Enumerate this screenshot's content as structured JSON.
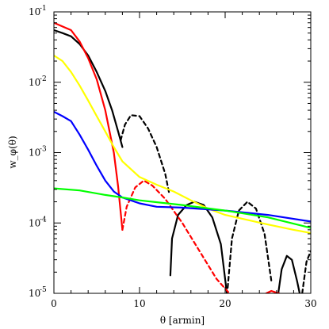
{
  "chart_data": {
    "type": "line",
    "title": "",
    "xlabel": "θ [armin]",
    "ylabel": "w_φ(θ)",
    "xlim": [
      0,
      30
    ],
    "ylim": [
      1e-05,
      0.1
    ],
    "yscale": "log",
    "grid": false,
    "legend": "none",
    "x_ticks": [
      0,
      10,
      20,
      30
    ],
    "x_tick_labels": [
      "0",
      "10",
      "20",
      "30"
    ],
    "y_ticks": [
      1e-05,
      0.0001,
      0.001,
      0.01,
      0.1
    ],
    "y_tick_labels": [
      "10",
      "10",
      "10",
      "10",
      "10"
    ],
    "y_tick_exponents": [
      "-5",
      "-4",
      "-3",
      "-2",
      "-1"
    ],
    "series": [
      {
        "color": "#000000",
        "dash": "solid",
        "points": [
          [
            0,
            0.055
          ],
          [
            1,
            0.05
          ],
          [
            2,
            0.045
          ],
          [
            3,
            0.035
          ],
          [
            4,
            0.024
          ],
          [
            5,
            0.014
          ],
          [
            6,
            0.0075
          ],
          [
            6.8,
            0.004
          ],
          [
            7.5,
            0.002
          ],
          [
            8,
            0.0012
          ]
        ]
      },
      {
        "color": "#000000",
        "dash": "dashed",
        "points": [
          [
            7.8,
            0.0015
          ],
          [
            8.3,
            0.0025
          ],
          [
            9,
            0.0034
          ],
          [
            10,
            0.0033
          ],
          [
            11,
            0.0022
          ],
          [
            12,
            0.0012
          ],
          [
            13,
            0.0005
          ],
          [
            13.5,
            0.00025
          ]
        ]
      },
      {
        "color": "#000000",
        "dash": "solid",
        "points": [
          [
            13.6,
            1.8e-05
          ],
          [
            13.8,
            6e-05
          ],
          [
            14.5,
            0.00013
          ],
          [
            15.5,
            0.00018
          ],
          [
            16.4,
            0.0002
          ],
          [
            17.5,
            0.00018
          ],
          [
            18.5,
            0.00012
          ],
          [
            19.5,
            5e-05
          ],
          [
            20.2,
            1e-05
          ]
        ]
      },
      {
        "color": "#000000",
        "dash": "dashed",
        "points": [
          [
            20.3,
            1.2e-05
          ],
          [
            20.8,
            6e-05
          ],
          [
            21.6,
            0.00015
          ],
          [
            22.6,
            0.0002
          ],
          [
            23.6,
            0.00016
          ],
          [
            24.6,
            7e-05
          ],
          [
            25.4,
            1.5e-05
          ]
        ]
      },
      {
        "color": "#000000",
        "dash": "solid",
        "points": [
          [
            26.2,
            1e-05
          ],
          [
            26.6,
            2.2e-05
          ],
          [
            27.2,
            3.4e-05
          ],
          [
            27.8,
            3e-05
          ],
          [
            28.4,
            1.5e-05
          ],
          [
            28.7,
            1e-05
          ]
        ]
      },
      {
        "color": "#000000",
        "dash": "dashed",
        "points": [
          [
            29.0,
            1e-05
          ],
          [
            29.5,
            2.8e-05
          ],
          [
            30,
            4e-05
          ]
        ]
      },
      {
        "color": "#ff0000",
        "dash": "solid",
        "points": [
          [
            0,
            0.07
          ],
          [
            1,
            0.062
          ],
          [
            2,
            0.055
          ],
          [
            3,
            0.038
          ],
          [
            4,
            0.022
          ],
          [
            5,
            0.011
          ],
          [
            6,
            0.004
          ],
          [
            7,
            0.001
          ],
          [
            7.5,
            0.00033
          ],
          [
            8,
            8e-05
          ]
        ]
      },
      {
        "color": "#ff0000",
        "dash": "dashed",
        "points": [
          [
            8.0,
            8e-05
          ],
          [
            8.5,
            0.00017
          ],
          [
            9.5,
            0.00032
          ],
          [
            10.5,
            0.0004
          ],
          [
            11.5,
            0.00034
          ],
          [
            13,
            0.00022
          ],
          [
            15,
            0.0001
          ],
          [
            17,
            4e-05
          ],
          [
            19,
            1.6e-05
          ],
          [
            20.5,
            1e-05
          ]
        ]
      },
      {
        "color": "#ff0000",
        "dash": "solid",
        "points": [
          [
            24.8,
            1e-05
          ],
          [
            25.4,
            1.08e-05
          ],
          [
            26,
            1.02e-05
          ],
          [
            26.3,
            1e-05
          ]
        ]
      },
      {
        "color": "#ffff00",
        "dash": "solid",
        "points": [
          [
            0,
            0.024
          ],
          [
            1,
            0.02
          ],
          [
            2,
            0.014
          ],
          [
            3,
            0.009
          ],
          [
            4,
            0.0055
          ],
          [
            5,
            0.0033
          ],
          [
            6,
            0.002
          ],
          [
            7,
            0.0012
          ],
          [
            8,
            0.00075
          ],
          [
            10,
            0.00045
          ],
          [
            12,
            0.00035
          ],
          [
            14,
            0.00028
          ],
          [
            16,
            0.00021
          ],
          [
            18,
            0.00016
          ],
          [
            20,
            0.00013
          ],
          [
            22,
            0.000115
          ],
          [
            25,
            9.5e-05
          ],
          [
            28,
            8e-05
          ],
          [
            30,
            7.2e-05
          ]
        ]
      },
      {
        "color": "#0000ff",
        "dash": "solid",
        "points": [
          [
            0,
            0.0038
          ],
          [
            1,
            0.0033
          ],
          [
            2,
            0.0028
          ],
          [
            3,
            0.0018
          ],
          [
            4,
            0.0011
          ],
          [
            5,
            0.00065
          ],
          [
            6,
            0.0004
          ],
          [
            7,
            0.00028
          ],
          [
            8,
            0.00023
          ],
          [
            10,
            0.00019
          ],
          [
            12,
            0.00017
          ],
          [
            15,
            0.000165
          ],
          [
            20,
            0.00015
          ],
          [
            25,
            0.00013
          ],
          [
            30,
            0.000105
          ]
        ]
      },
      {
        "color": "#00ff00",
        "dash": "solid",
        "points": [
          [
            0,
            0.00031
          ],
          [
            3,
            0.00029
          ],
          [
            6,
            0.00025
          ],
          [
            8,
            0.00023
          ],
          [
            10,
            0.00021
          ],
          [
            15,
            0.00018
          ],
          [
            20,
            0.00015
          ],
          [
            25,
            0.00012
          ],
          [
            30,
            8.5e-05
          ]
        ]
      }
    ]
  }
}
